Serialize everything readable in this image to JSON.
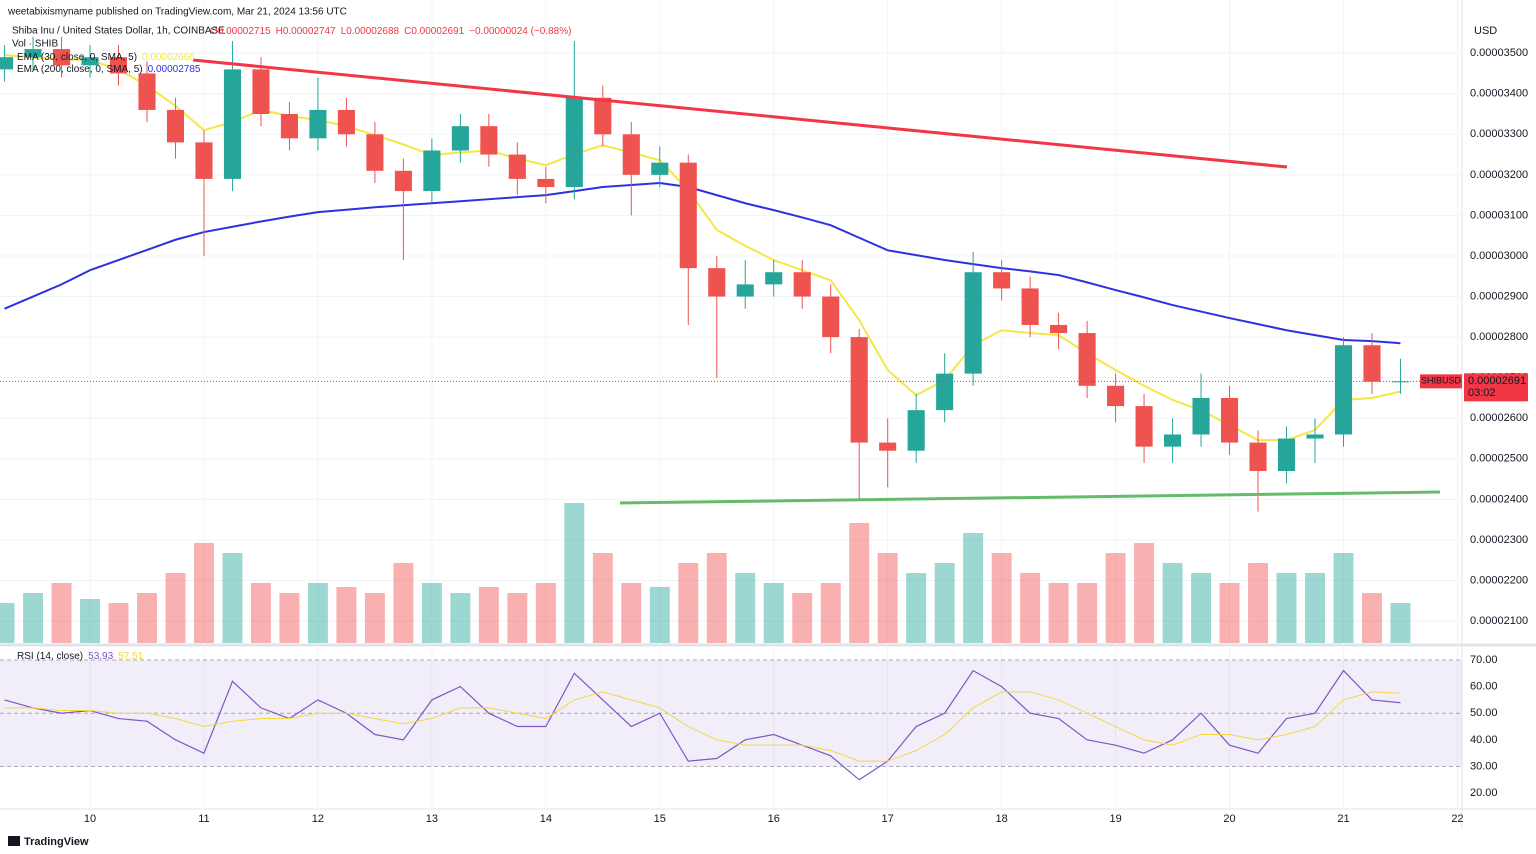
{
  "chart_data": {
    "type": "candlestick",
    "publisher": "weetabixismyname published on TradingView.com, Mar 21, 2024 13:56 UTC",
    "title": "Shiba Inu / United States Dollar, 1h, COINBASE",
    "ohlc_text": [
      "O0.00002715",
      "H0.00002747",
      "L0.00002688",
      "C0.00002691",
      "−0.00000024 (−0.88%)"
    ],
    "currency": "USD",
    "symbol": "SHIBUSD",
    "countdown": "03:02",
    "footer": "TradingView",
    "up_color": "#26a69a",
    "down_color": "#ef5350",
    "x": [
      9.25,
      9.5,
      9.75,
      10,
      10.25,
      10.5,
      10.75,
      11,
      11.25,
      11.5,
      11.75,
      12,
      12.25,
      12.5,
      12.75,
      13,
      13.25,
      13.5,
      13.75,
      14,
      14.25,
      14.5,
      14.75,
      15,
      15.25,
      15.5,
      15.75,
      16,
      16.25,
      16.5,
      16.75,
      17,
      17.25,
      17.5,
      17.75,
      18,
      18.25,
      18.5,
      18.75,
      19,
      19.25,
      19.5,
      19.75,
      20,
      20.25,
      20.5,
      20.75,
      21,
      21.25,
      21.5
    ],
    "open": [
      3.46e-05,
      3.49e-05,
      3.51e-05,
      3.47e-05,
      3.49e-05,
      3.45e-05,
      3.36e-05,
      3.28e-05,
      3.19e-05,
      3.46e-05,
      3.35e-05,
      3.29e-05,
      3.36e-05,
      3.3e-05,
      3.21e-05,
      3.16e-05,
      3.26e-05,
      3.32e-05,
      3.25e-05,
      3.19e-05,
      3.17e-05,
      3.39e-05,
      3.3e-05,
      3.2e-05,
      3.23e-05,
      2.97e-05,
      2.9e-05,
      2.93e-05,
      2.96e-05,
      2.9e-05,
      2.8e-05,
      2.54e-05,
      2.52e-05,
      2.62e-05,
      2.71e-05,
      2.96e-05,
      2.92e-05,
      2.83e-05,
      2.81e-05,
      2.68e-05,
      2.63e-05,
      2.53e-05,
      2.56e-05,
      2.65e-05,
      2.54e-05,
      2.47e-05,
      2.55e-05,
      2.56e-05,
      2.78e-05,
      2.69e-05
    ],
    "high": [
      3.52e-05,
      3.54e-05,
      3.54e-05,
      3.52e-05,
      3.52e-05,
      3.48e-05,
      3.39e-05,
      3.31e-05,
      3.53e-05,
      3.49e-05,
      3.38e-05,
      3.44e-05,
      3.39e-05,
      3.33e-05,
      3.24e-05,
      3.29e-05,
      3.35e-05,
      3.35e-05,
      3.28e-05,
      3.22e-05,
      3.53e-05,
      3.42e-05,
      3.33e-05,
      3.27e-05,
      3.25e-05,
      3e-05,
      2.99e-05,
      2.99e-05,
      2.99e-05,
      2.93e-05,
      2.82e-05,
      2.6e-05,
      2.66e-05,
      2.76e-05,
      3.01e-05,
      2.99e-05,
      2.95e-05,
      2.86e-05,
      2.84e-05,
      2.71e-05,
      2.66e-05,
      2.6e-05,
      2.71e-05,
      2.68e-05,
      2.57e-05,
      2.58e-05,
      2.6e-05,
      2.8e-05,
      2.81e-05,
      2.747e-05
    ],
    "low": [
      3.43e-05,
      3.46e-05,
      3.44e-05,
      3.44e-05,
      3.42e-05,
      3.33e-05,
      3.24e-05,
      3e-05,
      3.16e-05,
      3.32e-05,
      3.26e-05,
      3.26e-05,
      3.27e-05,
      3.18e-05,
      2.99e-05,
      3.13e-05,
      3.23e-05,
      3.22e-05,
      3.15e-05,
      3.13e-05,
      3.14e-05,
      3.27e-05,
      3.1e-05,
      3.17e-05,
      2.83e-05,
      2.7e-05,
      2.87e-05,
      2.9e-05,
      2.87e-05,
      2.76e-05,
      2.4e-05,
      2.43e-05,
      2.49e-05,
      2.59e-05,
      2.68e-05,
      2.89e-05,
      2.8e-05,
      2.77e-05,
      2.65e-05,
      2.59e-05,
      2.49e-05,
      2.49e-05,
      2.53e-05,
      2.51e-05,
      2.37e-05,
      2.44e-05,
      2.49e-05,
      2.53e-05,
      2.66e-05,
      2.66e-05
    ],
    "close": [
      3.49e-05,
      3.51e-05,
      3.47e-05,
      3.49e-05,
      3.45e-05,
      3.36e-05,
      3.28e-05,
      3.19e-05,
      3.46e-05,
      3.35e-05,
      3.29e-05,
      3.36e-05,
      3.3e-05,
      3.21e-05,
      3.16e-05,
      3.26e-05,
      3.32e-05,
      3.25e-05,
      3.19e-05,
      3.17e-05,
      3.39e-05,
      3.3e-05,
      3.2e-05,
      3.23e-05,
      2.97e-05,
      2.9e-05,
      2.93e-05,
      2.96e-05,
      2.9e-05,
      2.8e-05,
      2.54e-05,
      2.52e-05,
      2.62e-05,
      2.71e-05,
      2.96e-05,
      2.92e-05,
      2.83e-05,
      2.81e-05,
      2.68e-05,
      2.63e-05,
      2.53e-05,
      2.56e-05,
      2.65e-05,
      2.54e-05,
      2.47e-05,
      2.55e-05,
      2.56e-05,
      2.78e-05,
      2.69e-05,
      2.691e-05
    ],
    "xlim": [
      9.21,
      22.04
    ],
    "xticks": [
      10,
      11,
      12,
      13,
      14,
      15,
      16,
      17,
      18,
      19,
      20,
      21,
      22
    ],
    "ylim": [
      2.046e-05,
      3.631e-05
    ],
    "yticks": [
      {
        "value": 2.1e-05,
        "label": "0.00002100"
      },
      {
        "value": 2.2e-05,
        "label": "0.00002200"
      },
      {
        "value": 2.3e-05,
        "label": "0.00002300"
      },
      {
        "value": 2.4e-05,
        "label": "0.00002400"
      },
      {
        "value": 2.5e-05,
        "label": "0.00002500"
      },
      {
        "value": 2.6e-05,
        "label": "0.00002600"
      },
      {
        "value": 2.7e-05,
        "label": "0.00002700"
      },
      {
        "value": 2.8e-05,
        "label": "0.00002800"
      },
      {
        "value": 2.9e-05,
        "label": "0.00002900"
      },
      {
        "value": 3e-05,
        "label": "0.00003000"
      },
      {
        "value": 3.1e-05,
        "label": "0.00003100"
      },
      {
        "value": 3.2e-05,
        "label": "0.00003200"
      },
      {
        "value": 3.3e-05,
        "label": "0.00003300"
      },
      {
        "value": 3.4e-05,
        "label": "0.00003400"
      },
      {
        "value": 3.5e-05,
        "label": "0.00003500"
      }
    ],
    "grid": true,
    "volume": {
      "name": "Vol · SHIB",
      "vlim": [
        0,
        100
      ],
      "values": [
        20,
        25,
        30,
        22,
        20,
        25,
        35,
        50,
        45,
        30,
        25,
        30,
        28,
        25,
        40,
        30,
        25,
        28,
        25,
        30,
        70,
        45,
        30,
        28,
        40,
        45,
        35,
        30,
        25,
        30,
        60,
        45,
        35,
        40,
        55,
        45,
        35,
        30,
        30,
        45,
        50,
        40,
        35,
        30,
        40,
        35,
        35,
        45,
        25,
        20
      ]
    },
    "series": [
      {
        "name": "EMA (30, close, 0, SMA, 5)",
        "color": "#f5e642",
        "values": [
          3.495e-05,
          3.49e-05,
          3.485e-05,
          3.483e-05,
          3.46e-05,
          3.42e-05,
          3.37e-05,
          3.31e-05,
          3.33e-05,
          3.36e-05,
          3.345e-05,
          3.335e-05,
          3.32e-05,
          3.298e-05,
          3.275e-05,
          3.249e-05,
          3.255e-05,
          3.26e-05,
          3.24e-05,
          3.224e-05,
          3.25e-05,
          3.273e-05,
          3.255e-05,
          3.236e-05,
          3.162e-05,
          3.064e-05,
          3.025e-05,
          2.99e-05,
          2.965e-05,
          2.94e-05,
          2.842e-05,
          2.719e-05,
          2.657e-05,
          2.694e-05,
          2.78e-05,
          2.817e-05,
          2.81e-05,
          2.805e-05,
          2.76e-05,
          2.719e-05,
          2.68e-05,
          2.645e-05,
          2.62e-05,
          2.583e-05,
          2.546e-05,
          2.546e-05,
          2.571e-05,
          2.645e-05,
          2.65e-05,
          2.666e-05
        ]
      },
      {
        "name": "EMA (200, close, 0, SMA, 5)",
        "color": "#2e31e0",
        "values": [
          2.87e-05,
          2.9e-05,
          2.93e-05,
          2.965e-05,
          2.99e-05,
          3.015e-05,
          3.04e-05,
          3.059e-05,
          3.072e-05,
          3.085e-05,
          3.097e-05,
          3.108e-05,
          3.114e-05,
          3.12e-05,
          3.125e-05,
          3.13e-05,
          3.135e-05,
          3.14e-05,
          3.145e-05,
          3.15e-05,
          3.16e-05,
          3.17e-05,
          3.175e-05,
          3.18e-05,
          3.17e-05,
          3.15e-05,
          3.13e-05,
          3.113e-05,
          3.095e-05,
          3.076e-05,
          3.045e-05,
          3.014e-05,
          3.002e-05,
          2.99e-05,
          2.98e-05,
          2.97e-05,
          2.962e-05,
          2.953e-05,
          2.935e-05,
          2.916e-05,
          2.898e-05,
          2.879e-05,
          2.863e-05,
          2.847e-05,
          2.832e-05,
          2.817e-05,
          2.805e-05,
          2.793e-05,
          2.79e-05,
          2.785e-05
        ]
      }
    ],
    "rsi": {
      "name": "RSI (14, close)",
      "ylim": [
        14.4,
        74.5
      ],
      "yticks": [
        {
          "value": 20,
          "label": "20.00"
        },
        {
          "value": 30,
          "label": "30.00"
        },
        {
          "value": 40,
          "label": "40.00"
        },
        {
          "value": 50,
          "label": "50.00"
        },
        {
          "value": 60,
          "label": "60.00"
        },
        {
          "value": 70,
          "label": "70.00"
        }
      ],
      "band": [
        30,
        70
      ],
      "series": [
        {
          "color": "#7e57c2",
          "values": [
            55,
            52,
            50,
            51,
            48,
            47,
            40,
            35,
            62,
            52,
            48,
            55,
            50,
            42,
            40,
            55,
            60,
            50,
            45,
            45,
            65,
            55,
            45,
            50,
            32,
            33,
            40,
            42,
            38,
            34,
            25,
            32,
            45,
            50,
            66,
            60,
            50,
            48,
            40,
            38,
            35,
            40,
            50,
            38,
            35,
            48,
            50,
            66,
            55,
            53.93
          ]
        },
        {
          "color": "#f5d742",
          "values": [
            52,
            52,
            51,
            51,
            50,
            50,
            48,
            45,
            47,
            48,
            48,
            50,
            50,
            48,
            46,
            48,
            52,
            52,
            50,
            48,
            55,
            58,
            55,
            52,
            45,
            40,
            38,
            38,
            38,
            36,
            32,
            32,
            36,
            42,
            52,
            58,
            58,
            55,
            50,
            45,
            40,
            38,
            42,
            42,
            40,
            42,
            45,
            55,
            58,
            57.51
          ]
        }
      ]
    }
  }
}
